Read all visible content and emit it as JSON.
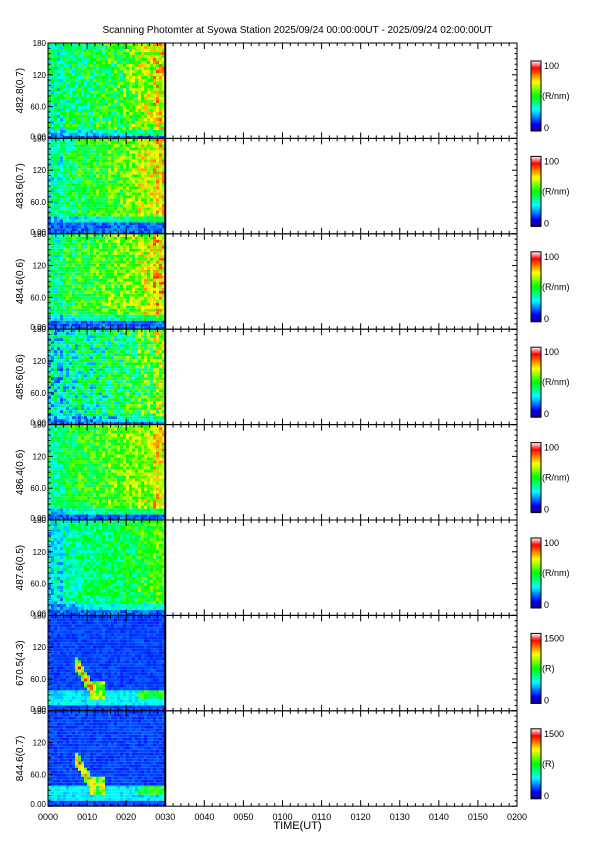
{
  "chart_data": {
    "type": "heatmap",
    "title": "Scanning Photomter at Syowa Station  2025/09/24 00:00:00UT - 2025/09/24 02:00:00UT",
    "xlabel": "TIME(UT)",
    "x_tick_labels": [
      "0000",
      "0010",
      "0020",
      "0030",
      "0040",
      "0050",
      "0100",
      "0110",
      "0120",
      "0130",
      "0140",
      "0150",
      "0200"
    ],
    "xlim_minutes": [
      0,
      120
    ],
    "data_end_minute": 30,
    "y_tick_labels": [
      "0.00",
      "60.0",
      "120",
      "180"
    ],
    "ylim": [
      0,
      180
    ],
    "panels": [
      {
        "ylabel": "482.8(0.7)",
        "unit": "(R/nm)",
        "scale_min": "0",
        "scale_max": "100",
        "intensity_profile": [
          0.38,
          0.42,
          0.44,
          0.46,
          0.5,
          0.55,
          0.62,
          0.7
        ],
        "blue_band_frac": 0.04,
        "noise": 0.16
      },
      {
        "ylabel": "483.6(0.7)",
        "unit": "(R/nm)",
        "scale_min": "0",
        "scale_max": "100",
        "intensity_profile": [
          0.36,
          0.44,
          0.48,
          0.5,
          0.54,
          0.58,
          0.64,
          0.7
        ],
        "blue_band_frac": 0.14,
        "noise": 0.14
      },
      {
        "ylabel": "484.6(0.6)",
        "unit": "(R/nm)",
        "scale_min": "0",
        "scale_max": "100",
        "intensity_profile": [
          0.4,
          0.48,
          0.5,
          0.52,
          0.55,
          0.58,
          0.64,
          0.72
        ],
        "blue_band_frac": 0.1,
        "noise": 0.15
      },
      {
        "ylabel": "485.6(0.6)",
        "unit": "(R/nm)",
        "scale_min": "0",
        "scale_max": "100",
        "intensity_profile": [
          0.32,
          0.36,
          0.38,
          0.4,
          0.43,
          0.47,
          0.52,
          0.6
        ],
        "blue_band_frac": 0.06,
        "noise": 0.18
      },
      {
        "ylabel": "486.4(0.6)",
        "unit": "(R/nm)",
        "scale_min": "0",
        "scale_max": "100",
        "intensity_profile": [
          0.4,
          0.46,
          0.5,
          0.52,
          0.55,
          0.58,
          0.62,
          0.7
        ],
        "blue_band_frac": 0.08,
        "noise": 0.13
      },
      {
        "ylabel": "487.6(0.5)",
        "unit": "(R/nm)",
        "scale_min": "0",
        "scale_max": "100",
        "intensity_profile": [
          0.3,
          0.36,
          0.4,
          0.42,
          0.44,
          0.46,
          0.5,
          0.54
        ],
        "blue_band_frac": 0.08,
        "noise": 0.12
      },
      {
        "ylabel": "670.5(4.3)",
        "unit": "(R)",
        "scale_min": "0",
        "scale_max": "1500",
        "intensity_profile": [
          0.14,
          0.15,
          0.16,
          0.16,
          0.17,
          0.18,
          0.18,
          0.19
        ],
        "blue_band_frac": 0.0,
        "noise": 0.05
      },
      {
        "ylabel": "844.6(0.7)",
        "unit": "(R)",
        "scale_min": "0",
        "scale_max": "1500",
        "intensity_profile": [
          0.16,
          0.17,
          0.18,
          0.18,
          0.19,
          0.2,
          0.2,
          0.21
        ],
        "blue_band_frac": 0.0,
        "noise": 0.05
      }
    ],
    "colormap": [
      "#1a0080",
      "#0000ff",
      "#0080ff",
      "#00ffff",
      "#00ff80",
      "#00ff00",
      "#80ff00",
      "#ffff00",
      "#ff8000",
      "#ff0000",
      "#ffffff"
    ]
  }
}
